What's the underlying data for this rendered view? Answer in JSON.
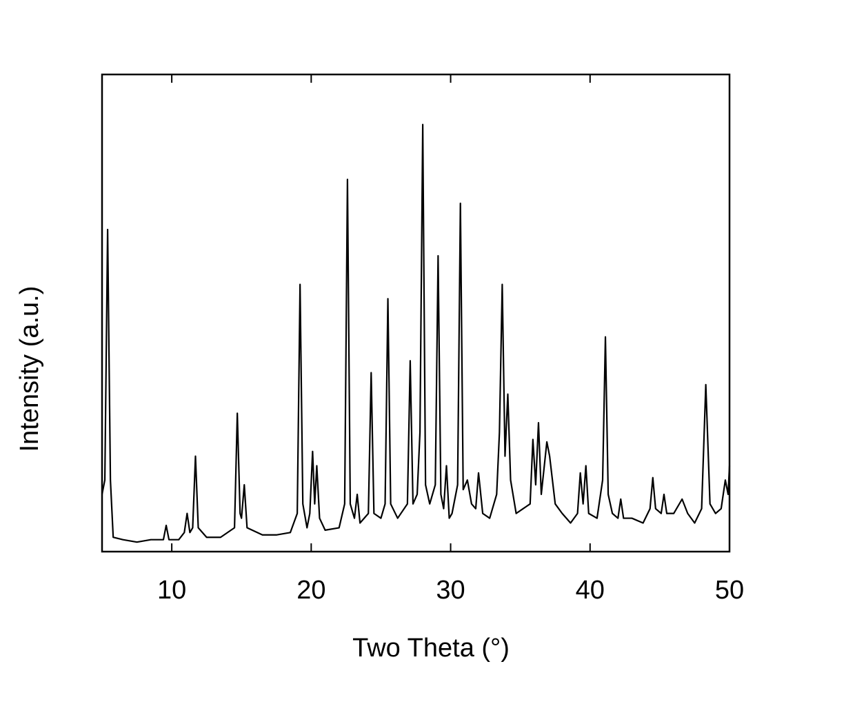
{
  "chart_data": {
    "type": "line",
    "x_label": "Two Theta (°)",
    "y_label": "Intensity (a.u.)",
    "xlim": [
      5,
      50
    ],
    "xticks": [
      10,
      20,
      30,
      40,
      50
    ],
    "ylim": [
      0,
      100
    ],
    "x": [
      5.0,
      5.2,
      5.4,
      5.6,
      5.8,
      6.5,
      7.5,
      8.5,
      9.4,
      9.6,
      9.8,
      10.5,
      10.9,
      11.1,
      11.3,
      11.5,
      11.7,
      11.9,
      12.5,
      13.5,
      14.5,
      14.7,
      14.9,
      15.0,
      15.2,
      15.4,
      16.5,
      17.5,
      18.5,
      19.0,
      19.2,
      19.4,
      19.7,
      19.9,
      20.1,
      20.25,
      20.4,
      20.6,
      21.0,
      22.0,
      22.4,
      22.6,
      22.8,
      23.1,
      23.3,
      23.5,
      24.1,
      24.3,
      24.5,
      25.0,
      25.3,
      25.5,
      25.7,
      26.2,
      26.9,
      27.1,
      27.3,
      27.6,
      27.8,
      28.0,
      28.2,
      28.5,
      28.9,
      29.1,
      29.3,
      29.5,
      29.7,
      29.9,
      30.1,
      30.5,
      30.7,
      30.9,
      31.2,
      31.5,
      31.8,
      32.0,
      32.3,
      32.8,
      33.3,
      33.5,
      33.7,
      33.9,
      34.1,
      34.3,
      34.7,
      35.2,
      35.7,
      35.9,
      36.1,
      36.3,
      36.5,
      36.9,
      37.1,
      37.5,
      38.0,
      38.6,
      39.1,
      39.3,
      39.5,
      39.7,
      39.9,
      40.5,
      40.9,
      41.1,
      41.3,
      41.6,
      42.0,
      42.2,
      42.4,
      43.0,
      43.8,
      44.3,
      44.5,
      44.7,
      45.1,
      45.3,
      45.5,
      46.0,
      46.6,
      47.0,
      47.5,
      48.0,
      48.3,
      48.6,
      49.0,
      49.4,
      49.7,
      49.9,
      50.0
    ],
    "series": [
      {
        "color": "#000000",
        "values": [
          12,
          15,
          67.5,
          15,
          3,
          2.5,
          2,
          2.5,
          2.5,
          5.5,
          2.5,
          2.5,
          4,
          8,
          4,
          5,
          20,
          5,
          3,
          3,
          5,
          29,
          8,
          7,
          14,
          5,
          3.5,
          3.5,
          4,
          8,
          56,
          10,
          5,
          8,
          21,
          10,
          18,
          7,
          4.5,
          5,
          10,
          78,
          10,
          7,
          12,
          6,
          8,
          37.5,
          8,
          7,
          10,
          53,
          10,
          7,
          10,
          40,
          10,
          12,
          25,
          89.5,
          14,
          10,
          14,
          62,
          12,
          9,
          18,
          7,
          8,
          14,
          73,
          13,
          15,
          10,
          9,
          16.5,
          8,
          7,
          12,
          25,
          56,
          20,
          33,
          15,
          8,
          9,
          10,
          23.5,
          14,
          27,
          12,
          23,
          20,
          10,
          8,
          6,
          8,
          16.5,
          10,
          18,
          8,
          7,
          15,
          45,
          12,
          8,
          7,
          11,
          7,
          7,
          6,
          9,
          15.5,
          9,
          8,
          12,
          8,
          8,
          11,
          8,
          6,
          9,
          35,
          10,
          8,
          9,
          15,
          12,
          18
        ]
      }
    ]
  }
}
